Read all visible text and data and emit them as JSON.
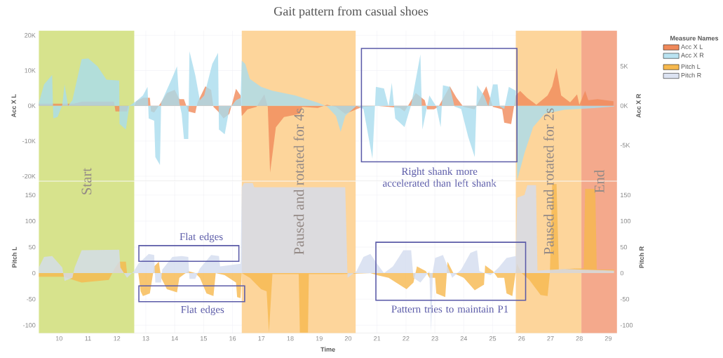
{
  "chart_data": [
    {
      "type": "area",
      "title": "Gait pattern from casual shoes",
      "ylabel": "Acc X L",
      "y2label": "Acc X R",
      "legend_title": "Measure Names",
      "xlim": [
        9.3,
        29.3
      ],
      "xticks": [
        10,
        11,
        12,
        13,
        14,
        15,
        16,
        17,
        18,
        19,
        20,
        21,
        22,
        23,
        24,
        25,
        26,
        27,
        28,
        29
      ],
      "ylim": [
        -21300,
        21300
      ],
      "yticks": [
        {
          "value": -20000,
          "label": "-20K"
        },
        {
          "value": -10000,
          "label": "-10K"
        },
        {
          "value": 0,
          "label": "0K"
        },
        {
          "value": 10000,
          "label": "10K"
        },
        {
          "value": 20000,
          "label": "20K"
        }
      ],
      "y2lim": [
        -9500,
        9500
      ],
      "y2ticks": [
        {
          "value": -5000,
          "label": "-5K"
        },
        {
          "value": 0,
          "label": "0K"
        },
        {
          "value": 5000,
          "label": "5K"
        }
      ],
      "grid": true,
      "legend": "right",
      "tick_labels": "y",
      "bands": [
        {
          "axis": "x",
          "from": 9.3,
          "to": 12.6,
          "color": "#d7e38d"
        },
        {
          "axis": "x",
          "from": 16.32,
          "to": 20.26,
          "color": "#fdd59b"
        },
        {
          "axis": "x",
          "from": 25.8,
          "to": 28.07,
          "color": "#fdd59b"
        },
        {
          "axis": "x",
          "from": 28.07,
          "to": 29.3,
          "color": "#f4a98c"
        }
      ],
      "annotations": [
        "Right shank more accelerated than left shank"
      ],
      "series": [
        {
          "name": "Acc X L",
          "color": "#f0895a",
          "x": [
            9.3,
            10.5,
            10.8,
            11.9,
            11.95,
            12.35,
            12.4,
            12.6,
            12.67,
            12.9,
            13.14,
            13.18,
            13.29,
            13.53,
            13.73,
            14.0,
            14.16,
            14.32,
            14.47,
            14.71,
            14.79,
            15.06,
            15.26,
            15.34,
            15.5,
            15.69,
            15.89,
            16.12,
            16.28,
            16.32,
            16.52,
            16.83,
            17.1,
            17.22,
            17.3,
            17.5,
            17.78,
            18.33,
            18.41,
            18.95,
            19.27,
            19.58,
            19.9,
            20.5,
            21.0,
            21.4,
            21.79,
            21.95,
            22.34,
            22.65,
            22.73,
            22.97,
            23.12,
            23.52,
            23.75,
            23.99,
            24.38,
            24.78,
            25.01,
            25.33,
            25.4,
            25.64,
            25.8,
            25.95,
            26.19,
            26.51,
            26.9,
            27.06,
            27.21,
            27.37,
            27.68,
            27.92,
            28.0,
            28.2,
            28.31,
            28.63,
            29.18
          ],
          "values": [
            600,
            600,
            1200,
            1200,
            -1600,
            -1600,
            0,
            0,
            1300,
            2300,
            2300,
            -1600,
            -1900,
            1000,
            3600,
            4500,
            1900,
            1900,
            -1600,
            -2100,
            1000,
            5500,
            4500,
            -300,
            -1600,
            -3600,
            -2300,
            4800,
            2900,
            -2900,
            -1000,
            -300,
            3200,
            -300,
            -19000,
            -6100,
            -3200,
            -2300,
            -300,
            -600,
            300,
            -300,
            -2300,
            -300,
            0,
            -300,
            -600,
            -1600,
            3600,
            1600,
            -1000,
            -1000,
            -300,
            5500,
            2300,
            -300,
            -1000,
            5500,
            -300,
            -1000,
            -4800,
            -5200,
            2900,
            4200,
            2300,
            300,
            2900,
            5500,
            10700,
            2900,
            1000,
            3200,
            300,
            4200,
            1600,
            1900,
            1300
          ]
        },
        {
          "name": "Acc X R",
          "color": "#a9dcee",
          "axis": "y2",
          "x": [
            9.3,
            9.48,
            9.76,
            9.8,
            9.95,
            10.11,
            10.19,
            10.31,
            10.46,
            10.78,
            11.01,
            11.33,
            11.64,
            12.08,
            12.09,
            12.31,
            12.43,
            12.59,
            12.67,
            12.9,
            13.06,
            13.1,
            13.29,
            13.33,
            13.49,
            13.53,
            13.92,
            14.08,
            14.16,
            14.24,
            14.32,
            14.47,
            14.51,
            14.71,
            14.87,
            15.02,
            15.3,
            15.5,
            15.53,
            15.73,
            15.89,
            16.12,
            16.28,
            16.32,
            16.44,
            16.6,
            16.99,
            17.38,
            18.17,
            18.95,
            19.27,
            19.58,
            19.74,
            19.9,
            19.98,
            20.29,
            20.53,
            20.84,
            20.96,
            21.24,
            21.4,
            21.51,
            21.63,
            21.95,
            22.18,
            22.5,
            22.57,
            22.81,
            23.05,
            23.2,
            23.28,
            23.52,
            23.68,
            23.91,
            24.15,
            24.38,
            24.46,
            24.7,
            24.85,
            25.01,
            25.17,
            25.25,
            25.4,
            25.56,
            25.8,
            25.85,
            26.1,
            26.4,
            26.8,
            27.5,
            28.5,
            29.2
          ],
          "values": [
            400,
            2700,
            3900,
            -1600,
            -1400,
            100,
            2700,
            0,
            700,
            5900,
            6000,
            5000,
            3300,
            3200,
            -2300,
            -3000,
            0,
            400,
            600,
            1300,
            2400,
            -1600,
            -1900,
            -6500,
            -7500,
            400,
            3600,
            5000,
            400,
            -1000,
            -4200,
            -4200,
            6900,
            3900,
            700,
            1300,
            5300,
            6700,
            -3000,
            -3600,
            -400,
            700,
            1000,
            5700,
            5300,
            3400,
            2400,
            1900,
            1300,
            400,
            -100,
            -1300,
            -3300,
            -1300,
            -1000,
            0,
            -400,
            -6700,
            2400,
            2200,
            -100,
            2900,
            -1600,
            -2700,
            100,
            6500,
            -3000,
            1300,
            -100,
            -2700,
            2600,
            2400,
            -100,
            -400,
            -3900,
            -6500,
            2600,
            1300,
            -100,
            2700,
            2700,
            -100,
            -400,
            2400,
            1900,
            -9400,
            -6000,
            -2700,
            -1000,
            -500,
            -300,
            -100
          ]
        }
      ]
    },
    {
      "type": "area",
      "xlabel": "Time",
      "ylabel": "Pitch L",
      "y2label": "Pitch R",
      "xlim": [
        9.3,
        29.3
      ],
      "xticks": [
        10,
        11,
        12,
        13,
        14,
        15,
        16,
        17,
        18,
        19,
        20,
        21,
        22,
        23,
        24,
        25,
        26,
        27,
        28,
        29
      ],
      "ylim": [
        -115,
        176
      ],
      "yticks": [
        -100,
        -50,
        0,
        50,
        100,
        150
      ],
      "y2lim": [
        -115,
        176
      ],
      "y2ticks": [
        -100,
        -50,
        0,
        50,
        100,
        150
      ],
      "grid": true,
      "legend": "right",
      "bands": [
        {
          "axis": "x",
          "from": 9.3,
          "to": 12.6,
          "color": "#d7e38d",
          "label": "Start"
        },
        {
          "axis": "x",
          "from": 16.32,
          "to": 20.26,
          "color": "#fdd59b",
          "label": "Paused and rotated for 4s"
        },
        {
          "axis": "x",
          "from": 25.8,
          "to": 28.07,
          "color": "#fdd59b",
          "label": "Paused and rotated for 2s"
        },
        {
          "axis": "x",
          "from": 28.07,
          "to": 29.3,
          "color": "#f4a98c",
          "label": "End"
        }
      ],
      "annotations": [
        "Flat edges",
        "Flat edges",
        "Pattern tries to maintain P1"
      ],
      "series": [
        {
          "name": "Pitch L",
          "color": "#f6b84e",
          "x": [
            9.3,
            10.15,
            10.78,
            11.72,
            11.92,
            12.08,
            12.31,
            12.35,
            12.74,
            12.82,
            12.9,
            13.14,
            13.29,
            13.45,
            13.53,
            13.73,
            14.08,
            14.16,
            14.47,
            14.71,
            14.87,
            15.1,
            15.34,
            15.42,
            15.73,
            16.12,
            16.16,
            16.28,
            16.32,
            16.6,
            16.99,
            17.18,
            17.26,
            17.38,
            18.29,
            18.33,
            18.61,
            18.64,
            19.74,
            20.77,
            21.0,
            21.4,
            21.71,
            22.02,
            22.26,
            22.38,
            22.69,
            22.81,
            23.01,
            23.05,
            23.36,
            23.44,
            23.64,
            24.0,
            24.38,
            24.7,
            24.74,
            25.01,
            25.17,
            25.4,
            25.48,
            25.68,
            25.84,
            26.0,
            26.27,
            26.66,
            26.9,
            26.98,
            27.06,
            27.21,
            27.29,
            27.84,
            28.15,
            28.2,
            28.55,
            28.6,
            29.2
          ],
          "values": [
            -7,
            -7,
            -18,
            -13,
            9,
            22,
            22,
            0,
            0,
            -35,
            -44,
            -39,
            13,
            22,
            -9,
            -31,
            -37,
            -9,
            4,
            0,
            -9,
            -39,
            -44,
            0,
            -4,
            -18,
            -46,
            -48,
            0,
            -9,
            -31,
            -35,
            -114,
            -2,
            -2,
            -114,
            -114,
            -2,
            -2,
            0,
            -4,
            -9,
            -20,
            -31,
            -18,
            13,
            4,
            -9,
            -9,
            -39,
            -46,
            22,
            0,
            -9,
            -33,
            -22,
            15,
            4,
            -9,
            -9,
            -39,
            -44,
            18,
            0,
            -13,
            -42,
            -44,
            0,
            171,
            171,
            7,
            9,
            9,
            162,
            162,
            7,
            7
          ]
        },
        {
          "name": "Pitch R",
          "color": "#d3dcef",
          "axis": "y2",
          "x": [
            9.3,
            9.48,
            9.76,
            10.11,
            10.19,
            10.46,
            10.54,
            10.78,
            12.08,
            12.12,
            12.35,
            12.59,
            12.74,
            13.1,
            13.29,
            13.33,
            13.53,
            13.57,
            13.92,
            14.24,
            14.47,
            14.51,
            14.71,
            14.87,
            15.26,
            15.53,
            15.57,
            16.28,
            16.32,
            16.4,
            16.7,
            16.75,
            19.9,
            19.98,
            20.29,
            20.53,
            20.77,
            21.0,
            21.24,
            21.55,
            21.91,
            22.18,
            22.26,
            22.5,
            22.81,
            22.87,
            22.93,
            23.01,
            23.28,
            23.6,
            23.91,
            24.23,
            24.46,
            24.54,
            24.93,
            25.21,
            25.48,
            25.8,
            25.85,
            26.1,
            26.2,
            26.5,
            26.55,
            27.5,
            28.0,
            29.2
          ],
          "values": [
            11,
            31,
            33,
            11,
            -15,
            -9,
            11,
            44,
            45,
            11,
            -9,
            4,
            18,
            37,
            35,
            -18,
            -18,
            7,
            31,
            33,
            31,
            -11,
            -11,
            9,
            35,
            33,
            13,
            18,
            165,
            173,
            173,
            165,
            165,
            -9,
            4,
            31,
            37,
            18,
            0,
            13,
            44,
            44,
            -9,
            -18,
            4,
            -114,
            4,
            29,
            35,
            -9,
            7,
            39,
            44,
            4,
            -4,
            11,
            29,
            33,
            145,
            150,
            169,
            169,
            5,
            8,
            7,
            5
          ]
        }
      ]
    }
  ]
}
